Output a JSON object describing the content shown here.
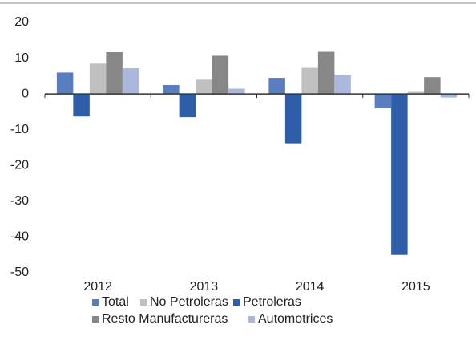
{
  "chart_data": {
    "type": "bar",
    "categories": [
      "2012",
      "2013",
      "2014",
      "2015"
    ],
    "series": [
      {
        "name": "Total",
        "color": "#5a7dc0",
        "values": [
          6.0,
          2.5,
          4.5,
          -4.0
        ]
      },
      {
        "name": "No Petroleras",
        "color": "#c0c0c0",
        "values": [
          8.5,
          4.0,
          7.3,
          0.6
        ]
      },
      {
        "name": "Petroleras",
        "color": "#2e5ea8",
        "values": [
          -6.3,
          -6.5,
          -13.8,
          -45.0
        ]
      },
      {
        "name": "Resto Manufactureras",
        "color": "#878787",
        "values": [
          11.7,
          10.7,
          11.8,
          4.7
        ]
      },
      {
        "name": "Automotrices",
        "color": "#a9b8dc",
        "values": [
          7.2,
          1.5,
          5.2,
          -1.0
        ]
      }
    ],
    "ylim": [
      -50,
      20
    ],
    "yticks": [
      -50,
      -40,
      -30,
      -20,
      -10,
      0,
      10,
      20
    ],
    "grid": false
  }
}
